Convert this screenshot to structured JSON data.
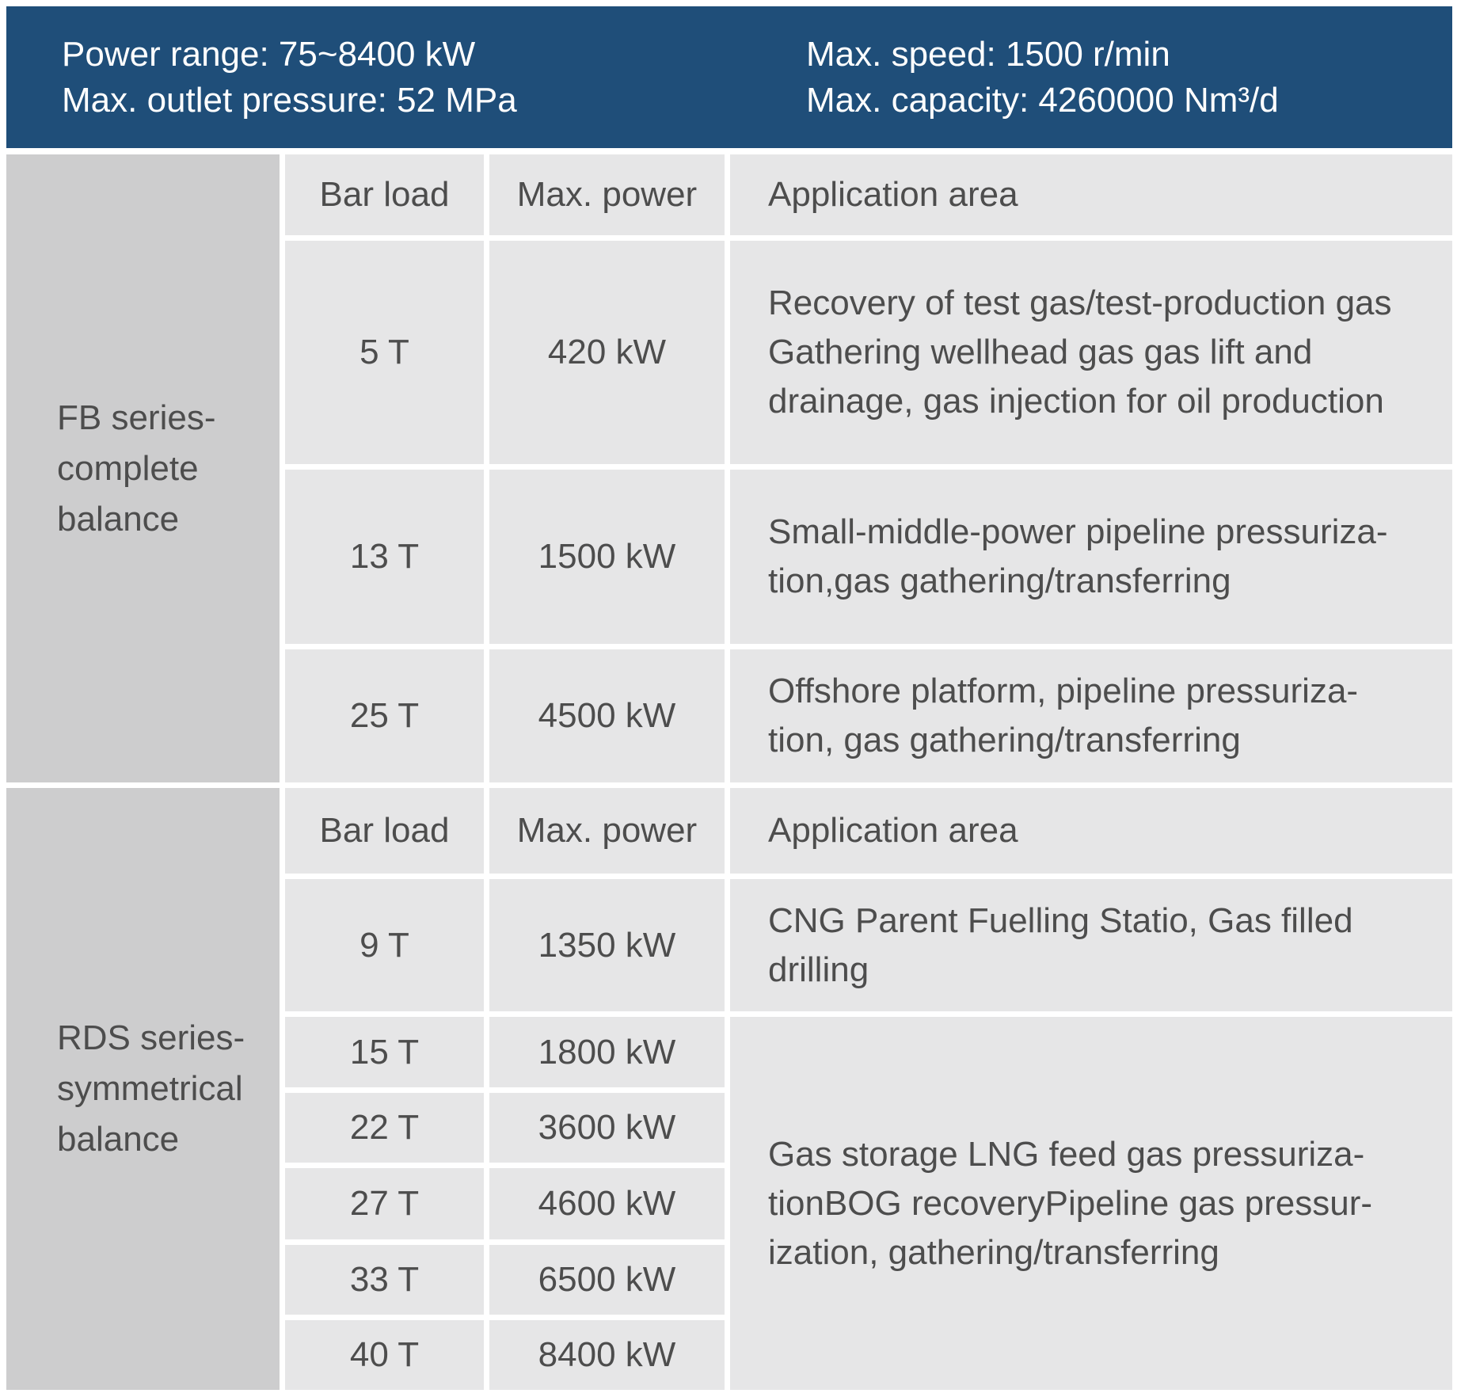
{
  "banner": {
    "power_range": "Power range: 75~8400 kW",
    "max_outlet_pressure": "Max. outlet pressure: 52 MPa",
    "max_speed": "Max. speed: 1500 r/min",
    "max_capacity": "Max. capacity: 4260000 Nm³/d"
  },
  "table": {
    "sections": [
      {
        "series": "FB series-\ncomplete\nbalance",
        "columns": [
          "Bar load",
          "Max. power",
          "Application area"
        ],
        "rows": [
          {
            "bar_load": "5 T",
            "max_power": "420 kW",
            "application": "Recovery of test gas/test-production gas\nGathering wellhead gas gas lift and\ndrainage, gas injection for oil production"
          },
          {
            "bar_load": "13 T",
            "max_power": "1500 kW",
            "application": "Small-middle-power pipeline pressuriza-\ntion,gas gathering/transferring"
          },
          {
            "bar_load": "25 T",
            "max_power": "4500 kW",
            "application": "Offshore platform, pipeline pressuriza-\ntion,  gas gathering/transferring"
          }
        ]
      },
      {
        "series": "RDS series-\nsymmetrical\nbalance",
        "columns": [
          "Bar load",
          "Max. power",
          "Application area"
        ],
        "rows": [
          {
            "bar_load": "9 T",
            "max_power": "1350 kW",
            "application": "CNG Parent Fuelling Statio, Gas filled\ndrilling"
          },
          {
            "bar_load": "15 T",
            "max_power": "1800 kW"
          },
          {
            "bar_load": "22 T",
            "max_power": "3600 kW"
          },
          {
            "bar_load": "27 T",
            "max_power": "4600 kW"
          },
          {
            "bar_load": "33 T",
            "max_power": "6500 kW"
          },
          {
            "bar_load": "40 T",
            "max_power": "8400 kW"
          }
        ],
        "merged_application": "Gas storage LNG feed gas pressuriza-\ntionBOG recoveryPipeline gas pressur-\nization, gathering/transferring"
      }
    ]
  },
  "colors": {
    "banner_bg": "#1f4e79",
    "banner_text": "#ffffff",
    "cell_bg": "#e6e6e7",
    "series_cell_bg": "#cdcdce",
    "text_color": "#4d4d4d"
  }
}
